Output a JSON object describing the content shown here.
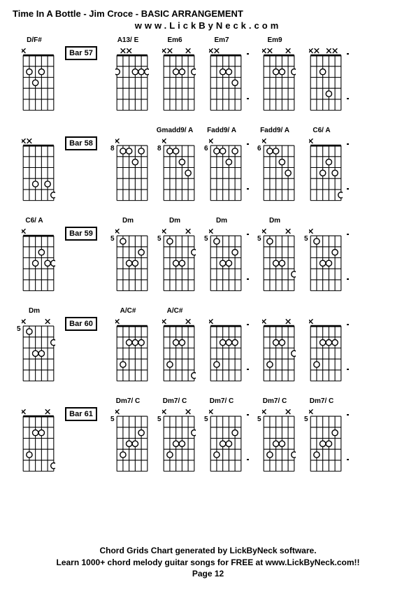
{
  "title": "Time In A Bottle - Jim Croce - BASIC ARRANGEMENT",
  "subtitle": "www.LickByNeck.com",
  "footer": {
    "line1": "Chord Grids Chart generated by LickByNeck software.",
    "line2": "Learn 1000+ chord melody guitar songs for FREE at www.LickByNeck.com!!",
    "line3": "Page 12"
  },
  "style": {
    "strings": 6,
    "frets": 5,
    "grid_color": "#000000",
    "background": "#ffffff",
    "marker_stroke": "#000000",
    "marker_fill": "#ffffff",
    "text_color": "#000000"
  },
  "rows": [
    {
      "bar": "Bar 57",
      "leading": {
        "label": "D/F#",
        "fret": "",
        "top": [
          "x",
          "",
          "",
          "",
          "",
          ""
        ],
        "dots": [
          [
            2,
            2
          ],
          [
            2,
            4
          ],
          [
            3,
            3
          ]
        ]
      },
      "chords": [
        {
          "label": "A13/ E",
          "fret": "",
          "top": [
            "",
            "x",
            "x",
            "",
            "",
            ""
          ],
          "dots": [
            [
              2,
              1
            ],
            [
              2,
              4
            ],
            [
              2,
              5
            ],
            [
              2,
              6
            ]
          ]
        },
        {
          "label": "Em6",
          "fret": "",
          "top": [
            "x",
            "x",
            "",
            "",
            "x",
            ""
          ],
          "dots": [
            [
              2,
              3
            ],
            [
              2,
              4
            ],
            [
              2,
              6
            ]
          ]
        },
        {
          "label": "Em7",
          "fret": "",
          "top": [
            "x",
            "x",
            "",
            "",
            "",
            ""
          ],
          "dots": [
            [
              2,
              3
            ],
            [
              3,
              5
            ],
            [
              2,
              4
            ]
          ]
        },
        {
          "tick": true
        },
        {
          "label": "Em9",
          "fret": "",
          "top": [
            "x",
            "x",
            "",
            "",
            "x",
            ""
          ],
          "dots": [
            [
              2,
              3
            ],
            [
              2,
              4
            ],
            [
              2,
              6
            ]
          ]
        },
        {
          "label": "",
          "fret": "",
          "top": [
            "x",
            "x",
            "",
            "x",
            "x",
            ""
          ],
          "dots": [
            [
              2,
              3
            ],
            [
              4,
              4
            ]
          ]
        },
        {
          "tick": true
        }
      ]
    },
    {
      "bar": "Bar 58",
      "leading": {
        "label": "",
        "fret": "",
        "top": [
          "x",
          "x",
          "",
          "",
          "",
          ""
        ],
        "dots": [
          [
            4,
            3
          ],
          [
            4,
            5
          ],
          [
            5,
            6
          ]
        ]
      },
      "chords": [
        {
          "label": "",
          "fret": "8",
          "top": [
            "x",
            "",
            "",
            "",
            "",
            ""
          ],
          "dots": [
            [
              1,
              2
            ],
            [
              1,
              3
            ],
            [
              2,
              4
            ],
            [
              1,
              5
            ]
          ]
        },
        {
          "label": "Gmadd9/ A",
          "fret": "8",
          "top": [
            "x",
            "",
            "",
            "",
            "",
            ""
          ],
          "dots": [
            [
              1,
              2
            ],
            [
              1,
              3
            ],
            [
              2,
              4
            ],
            [
              3,
              5
            ]
          ]
        },
        {
          "label": "Fadd9/ A",
          "fret": "6",
          "top": [
            "x",
            "",
            "",
            "",
            "",
            ""
          ],
          "dots": [
            [
              1,
              2
            ],
            [
              1,
              3
            ],
            [
              2,
              4
            ],
            [
              1,
              5
            ]
          ]
        },
        {
          "tick": true
        },
        {
          "label": "Fadd9/ A",
          "fret": "6",
          "top": [
            "x",
            "",
            "",
            "",
            "",
            ""
          ],
          "dots": [
            [
              1,
              2
            ],
            [
              1,
              3
            ],
            [
              2,
              4
            ],
            [
              3,
              5
            ]
          ]
        },
        {
          "label": "C6/ A",
          "fret": "",
          "top": [
            "x",
            "",
            "",
            "",
            "",
            ""
          ],
          "dots": [
            [
              3,
              3
            ],
            [
              2,
              4
            ],
            [
              3,
              5
            ],
            [
              5,
              6
            ]
          ]
        },
        {
          "tick": true
        }
      ]
    },
    {
      "bar": "Bar 59",
      "leading": {
        "label": "C6/ A",
        "fret": "",
        "top": [
          "x",
          "",
          "",
          "",
          "",
          ""
        ],
        "dots": [
          [
            3,
            3
          ],
          [
            2,
            4
          ],
          [
            3,
            5
          ],
          [
            3,
            6
          ]
        ]
      },
      "chords": [
        {
          "label": "Dm",
          "fret": "5",
          "top": [
            "x",
            "",
            "",
            "",
            "",
            ""
          ],
          "dots": [
            [
              1,
              2
            ],
            [
              3,
              3
            ],
            [
              3,
              4
            ],
            [
              2,
              5
            ]
          ]
        },
        {
          "label": "Dm",
          "fret": "5",
          "top": [
            "x",
            "",
            "",
            "",
            "x",
            ""
          ],
          "dots": [
            [
              1,
              2
            ],
            [
              3,
              3
            ],
            [
              3,
              4
            ],
            [
              2,
              6
            ]
          ]
        },
        {
          "label": "Dm",
          "fret": "5",
          "top": [
            "x",
            "",
            "",
            "",
            "",
            ""
          ],
          "dots": [
            [
              1,
              2
            ],
            [
              3,
              3
            ],
            [
              3,
              4
            ],
            [
              2,
              5
            ]
          ]
        },
        {
          "tick": true
        },
        {
          "label": "Dm",
          "fret": "5",
          "top": [
            "x",
            "",
            "",
            "",
            "x",
            ""
          ],
          "dots": [
            [
              1,
              2
            ],
            [
              3,
              3
            ],
            [
              3,
              4
            ],
            [
              4,
              6
            ]
          ]
        },
        {
          "label": "",
          "fret": "5",
          "top": [
            "x",
            "",
            "",
            "",
            "",
            ""
          ],
          "dots": [
            [
              1,
              2
            ],
            [
              3,
              3
            ],
            [
              3,
              4
            ],
            [
              2,
              5
            ]
          ]
        },
        {
          "tick": true
        }
      ]
    },
    {
      "bar": "Bar 60",
      "leading": {
        "label": "Dm",
        "fret": "5",
        "top": [
          "x",
          "",
          "",
          "",
          "x",
          ""
        ],
        "dots": [
          [
            1,
            2
          ],
          [
            3,
            3
          ],
          [
            3,
            4
          ],
          [
            2,
            6
          ]
        ]
      },
      "chords": [
        {
          "label": "A/C#",
          "fret": "",
          "top": [
            "x",
            "",
            "",
            "",
            "",
            ""
          ],
          "dots": [
            [
              4,
              2
            ],
            [
              2,
              3
            ],
            [
              2,
              4
            ],
            [
              2,
              5
            ]
          ]
        },
        {
          "label": "A/C#",
          "fret": "",
          "top": [
            "x",
            "",
            "",
            "",
            "x",
            ""
          ],
          "dots": [
            [
              4,
              2
            ],
            [
              2,
              3
            ],
            [
              2,
              4
            ],
            [
              5,
              6
            ]
          ]
        },
        {
          "label": "",
          "fret": "",
          "top": [
            "x",
            "",
            "",
            "",
            "",
            ""
          ],
          "dots": [
            [
              4,
              2
            ],
            [
              2,
              3
            ],
            [
              2,
              4
            ],
            [
              2,
              5
            ]
          ]
        },
        {
          "tick": true
        },
        {
          "label": "",
          "fret": "",
          "top": [
            "x",
            "",
            "",
            "",
            "x",
            ""
          ],
          "dots": [
            [
              4,
              2
            ],
            [
              2,
              3
            ],
            [
              2,
              4
            ],
            [
              3,
              6
            ]
          ]
        },
        {
          "label": "",
          "fret": "",
          "top": [
            "x",
            "",
            "",
            "",
            "",
            ""
          ],
          "dots": [
            [
              4,
              2
            ],
            [
              2,
              3
            ],
            [
              2,
              4
            ],
            [
              2,
              5
            ]
          ]
        },
        {
          "tick": true
        }
      ]
    },
    {
      "bar": "Bar 61",
      "leading": {
        "label": "",
        "fret": "",
        "top": [
          "x",
          "",
          "",
          "",
          "x",
          ""
        ],
        "dots": [
          [
            4,
            2
          ],
          [
            2,
            3
          ],
          [
            2,
            4
          ],
          [
            5,
            6
          ]
        ]
      },
      "chords": [
        {
          "label": "Dm7/ C",
          "fret": "5",
          "top": [
            "x",
            "",
            "",
            "",
            "",
            ""
          ],
          "dots": [
            [
              4,
              2
            ],
            [
              3,
              3
            ],
            [
              3,
              4
            ],
            [
              2,
              5
            ]
          ]
        },
        {
          "label": "Dm7/ C",
          "fret": "5",
          "top": [
            "x",
            "",
            "",
            "",
            "x",
            ""
          ],
          "dots": [
            [
              4,
              2
            ],
            [
              3,
              3
            ],
            [
              3,
              4
            ],
            [
              2,
              6
            ]
          ]
        },
        {
          "label": "Dm7/ C",
          "fret": "5",
          "top": [
            "x",
            "",
            "",
            "",
            "",
            ""
          ],
          "dots": [
            [
              4,
              2
            ],
            [
              3,
              3
            ],
            [
              3,
              4
            ],
            [
              2,
              5
            ]
          ]
        },
        {
          "tick": true
        },
        {
          "label": "Dm7/ C",
          "fret": "5",
          "top": [
            "x",
            "",
            "",
            "",
            "x",
            ""
          ],
          "dots": [
            [
              4,
              2
            ],
            [
              3,
              3
            ],
            [
              3,
              4
            ],
            [
              4,
              6
            ]
          ]
        },
        {
          "label": "Dm7/ C",
          "fret": "5",
          "top": [
            "x",
            "",
            "",
            "",
            "",
            ""
          ],
          "dots": [
            [
              4,
              2
            ],
            [
              3,
              3
            ],
            [
              3,
              4
            ],
            [
              2,
              5
            ]
          ]
        },
        {
          "tick": true
        }
      ]
    }
  ]
}
